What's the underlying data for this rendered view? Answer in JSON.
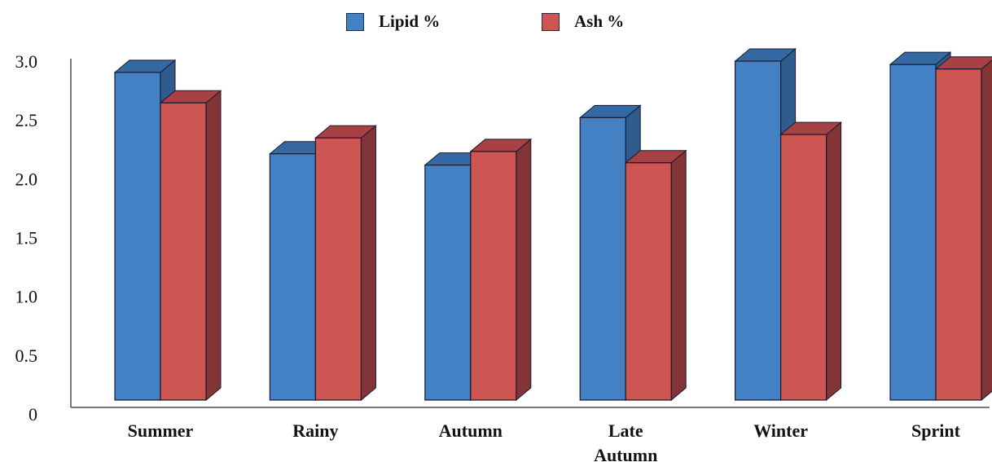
{
  "chart_data": {
    "type": "bar",
    "style": "3d-clustered-column",
    "categories": [
      "Summer",
      "Rainy",
      "Autumn",
      "Late Autumn",
      "Winter",
      "Sprint"
    ],
    "category_lines": [
      [
        "Summer"
      ],
      [
        "Rainy"
      ],
      [
        "Autumn"
      ],
      [
        "Late",
        "Autumn"
      ],
      [
        "Winter"
      ],
      [
        "Sprint"
      ]
    ],
    "series": [
      {
        "name": "Lipid %",
        "color": "#4380c4",
        "side_color": "#2e5c8f",
        "top_color": "#3569a3",
        "values": [
          2.9,
          2.18,
          2.08,
          2.5,
          3.0,
          2.97
        ]
      },
      {
        "name": "Ash %",
        "color": "#cd5552",
        "side_color": "#833437",
        "top_color": "#a84144",
        "values": [
          2.63,
          2.32,
          2.2,
          2.1,
          2.35,
          2.93
        ]
      }
    ],
    "y_ticks": [
      "0",
      "0.5",
      "1.0",
      "1.5",
      "2.0",
      "2.5",
      "3.0"
    ],
    "ylim": [
      0,
      3.0
    ],
    "xlabel": "",
    "ylabel": "",
    "title": "",
    "grid": false,
    "legend_position": "top"
  }
}
